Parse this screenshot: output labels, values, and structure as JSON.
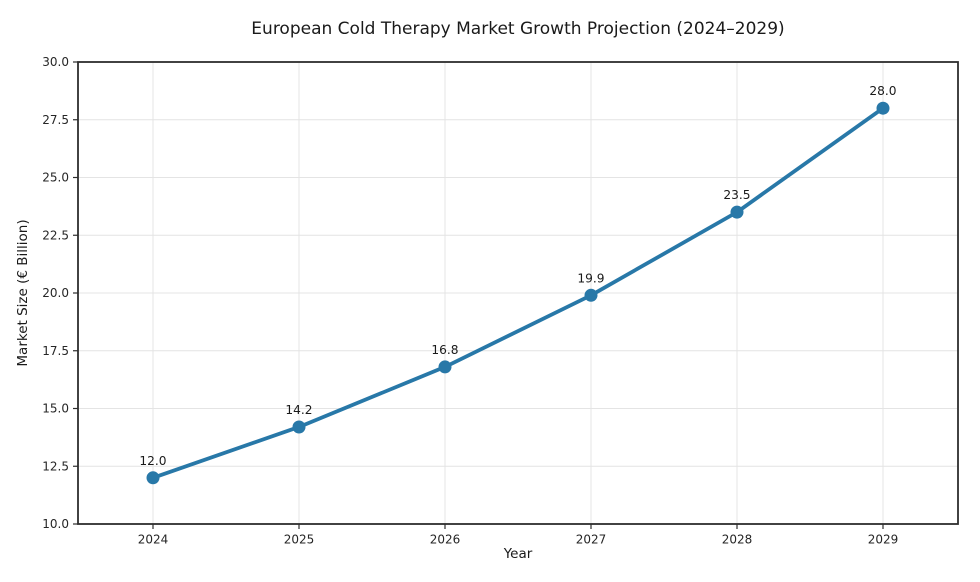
{
  "chart_data": {
    "type": "line",
    "title": "European Cold Therapy Market Growth Projection (2024–2029)",
    "xlabel": "Year",
    "ylabel": "Market Size (€ Billion)",
    "categories": [
      "2024",
      "2025",
      "2026",
      "2027",
      "2028",
      "2029"
    ],
    "values": [
      12.0,
      14.2,
      16.8,
      19.9,
      23.5,
      28.0
    ],
    "point_labels": [
      "12.0",
      "14.2",
      "16.8",
      "19.9",
      "23.5",
      "28.0"
    ],
    "ylim": [
      10.0,
      30.0
    ],
    "ytick_values": [
      10.0,
      12.5,
      15.0,
      17.5,
      20.0,
      22.5,
      25.0,
      27.5,
      30.0
    ],
    "ytick_labels": [
      "10.0",
      "12.5",
      "15.0",
      "17.5",
      "20.0",
      "22.5",
      "25.0",
      "27.5",
      "30.0"
    ],
    "grid": true,
    "legend": "none",
    "colors": {
      "line": "#2878a8",
      "marker": "#2878a8",
      "grid": "#e4e4e4",
      "spine": "#2d2d2d",
      "tick_text": "#262626",
      "label_text": "#1a1a1a",
      "background": "#ffffff"
    }
  }
}
